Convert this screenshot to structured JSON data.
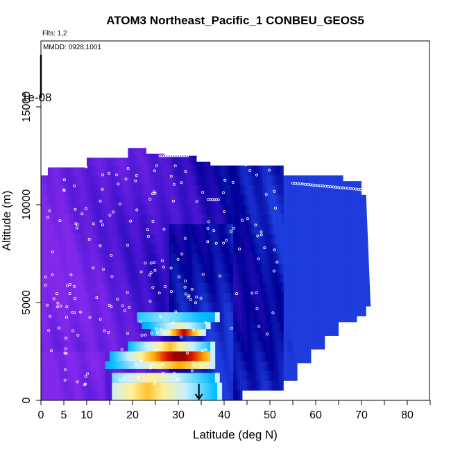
{
  "chart_data": {
    "type": "heatmap",
    "title": "ATOM3 Northeast_Pacific_1 CONBEU_GEOS5",
    "annotations": [
      "Flts: 1,2",
      "MMDD: 0928,1001"
    ],
    "xlabel": "Latitude (deg N)",
    "ylabel": "Altitude (m)",
    "xlim": [
      0,
      85
    ],
    "ylim": [
      0,
      18500
    ],
    "x_tick_labels": [
      "0",
      "5",
      "10",
      "20",
      "30",
      "40",
      "50",
      "60",
      "70",
      "80"
    ],
    "x_tick_values": [
      0,
      5,
      10,
      20,
      30,
      40,
      50,
      60,
      70,
      80
    ],
    "y_tick_labels": [
      "0",
      "5000",
      "10000",
      "15000"
    ],
    "y_tick_values": [
      0,
      5000,
      10000,
      15000
    ],
    "colorbar_label": "1e-08",
    "arrow_marker": {
      "x": 34.5,
      "y_top": 700,
      "y_bottom": 0
    },
    "columns": [
      {
        "x0": 0,
        "x1": 1,
        "top": 11500
      },
      {
        "x0": 1,
        "x1": 1.5,
        "top": 11500
      },
      {
        "x0": 1.5,
        "x1": 10,
        "top": 11900
      },
      {
        "x0": 10,
        "x1": 16,
        "top": 12400
      },
      {
        "x0": 16,
        "x1": 19,
        "top": 12400
      },
      {
        "x0": 19,
        "x1": 23,
        "top": 12900
      },
      {
        "x0": 23,
        "x1": 27,
        "top": 12600
      },
      {
        "x0": 27,
        "x1": 34,
        "top": 12500
      },
      {
        "x0": 34,
        "x1": 37,
        "top": 12200
      },
      {
        "x0": 37,
        "x1": 53,
        "top": 12000
      },
      {
        "x0": 53,
        "x1": 66,
        "top": 11500
      },
      {
        "x0": 66,
        "x1": 70,
        "top": 11200
      },
      {
        "x0": 70,
        "x1": 71,
        "top": 10500
      }
    ],
    "right_edge_bottoms": [
      {
        "x0": 40,
        "x1": 44,
        "bottom": 0
      },
      {
        "x0": 44,
        "x1": 53,
        "bottom": 500
      },
      {
        "x0": 53,
        "x1": 56,
        "bottom": 1000
      },
      {
        "x0": 56,
        "x1": 59,
        "bottom": 1900
      },
      {
        "x0": 59,
        "x1": 62,
        "bottom": 2600
      },
      {
        "x0": 62,
        "x1": 65,
        "bottom": 3300
      },
      {
        "x0": 65,
        "x1": 69,
        "bottom": 4000
      },
      {
        "x0": 69,
        "x1": 71,
        "bottom": 4300
      },
      {
        "x0": 71,
        "x1": 72,
        "bottom": 4800
      }
    ],
    "hot_bands": [
      {
        "y0": 0,
        "y1": 900,
        "x0": 15.5,
        "x1": 39.5,
        "peak_x": 23,
        "intensity": 0.55
      },
      {
        "y0": 900,
        "y1": 1400,
        "x0": 15.5,
        "x1": 39,
        "peak_x": 24,
        "intensity": 0.45
      },
      {
        "y0": 1600,
        "y1": 2000,
        "x0": 14,
        "x1": 38,
        "peak_x": 30,
        "intensity": 0.6
      },
      {
        "y0": 2000,
        "y1": 2500,
        "x0": 15,
        "x1": 38,
        "peak_x": 30,
        "intensity": 0.9
      },
      {
        "y0": 2500,
        "y1": 3000,
        "x0": 19,
        "x1": 38,
        "peak_x": 28,
        "intensity": 0.55
      },
      {
        "y0": 3300,
        "y1": 3650,
        "x0": 24,
        "x1": 36,
        "peak_x": 31,
        "intensity": 0.8
      },
      {
        "y0": 3650,
        "y1": 4000,
        "x0": 22,
        "x1": 37,
        "peak_x": 30,
        "intensity": 0.4
      },
      {
        "y0": 4000,
        "y1": 4500,
        "x0": 21,
        "x1": 39,
        "peak_x": 27,
        "intensity": 0.25
      }
    ],
    "grid": false,
    "legend": "none"
  },
  "colors": {
    "violet": "#8a2be2",
    "blue": "#0000b0",
    "sky": "#00bfff",
    "yellow": "#ffd000",
    "red": "#c00000"
  }
}
